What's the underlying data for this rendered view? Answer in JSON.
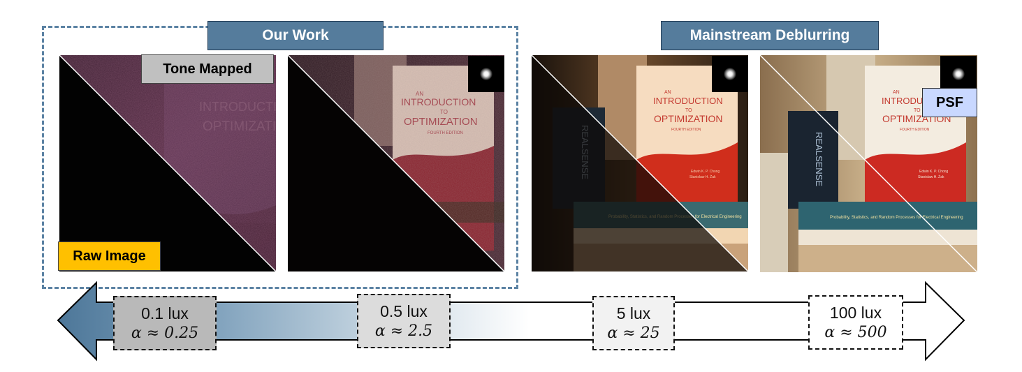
{
  "headers": {
    "our_work": "Our Work",
    "mainstream": "Mainstream Deblurring"
  },
  "tags": {
    "tone_mapped": "Tone Mapped",
    "raw_image": "Raw Image",
    "psf": "PSF"
  },
  "book": {
    "line1": "AN",
    "line2": "INTRODUCTION",
    "line3": "TO",
    "line4": "OPTIMIZATION",
    "edition": "FOURTH EDITION",
    "authors1": "Edwin K. P. Chong",
    "authors2": "Stanislaw H. Żak",
    "spine": "REALSENSE",
    "bottom_book": "Probability, Statistics, and Random Processes for Electrical Engineering"
  },
  "scale": {
    "points": [
      {
        "lux": "0.1 lux",
        "alpha": "α ≈ 0.25"
      },
      {
        "lux": "0.5 lux",
        "alpha": "α ≈ 2.5"
      },
      {
        "lux": "5 lux",
        "alpha": "α ≈ 25"
      },
      {
        "lux": "100 lux",
        "alpha": "α ≈ 500"
      }
    ]
  },
  "colors": {
    "header_bg": "#557c9c",
    "dashed_border": "#5b82a3",
    "raw_tag_bg": "#ffc000",
    "tone_tag_bg": "#c0c0c0",
    "psf_tag_bg": "#c9d8ff",
    "arrow_dark": "#4d7799"
  },
  "icons": {
    "psf_kernel": "psf-kernel-icon",
    "arrow": "double-arrow-icon"
  }
}
